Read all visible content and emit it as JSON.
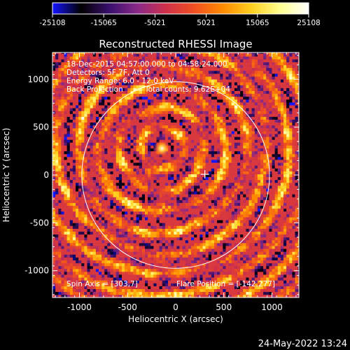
{
  "colorbar": {
    "ticks": [
      "-25108",
      "-15065",
      "-5021",
      "5021",
      "15065",
      "25108"
    ],
    "stops": [
      "#1414ff",
      "#000000",
      "#3a0f6e",
      "#8a2a88",
      "#d0304a",
      "#f05020",
      "#ff8c00",
      "#ffd020",
      "#ffff90",
      "#ffffff"
    ]
  },
  "chart_data": {
    "type": "heatmap",
    "title": "Reconstructed RHESSI Image",
    "xlabel": "Heliocentric X (arcsec)",
    "ylabel": "Heliocentric Y (arcsec)",
    "xlim": [
      -1280,
      1280
    ],
    "ylim": [
      -1280,
      1280
    ],
    "xticks": [
      -1000,
      -500,
      0,
      500,
      1000
    ],
    "yticks": [
      -1000,
      -500,
      0,
      500,
      1000
    ],
    "solar_limb_radius_arcsec": 975,
    "flare_source_arcsec": [
      -142,
      277
    ],
    "spin_axis_marker_arcsec": [
      303,
      7
    ],
    "value_range": [
      -25108,
      25108
    ],
    "annotations": [
      "18-Dec-2015 04:57:00.000 to 04:58:24.000",
      "Detectors: 5F 7F, Att 0",
      "Energy Range: 6.0 - 12.0 keV",
      "Back Projection",
      "Total counts: 9.62E+04",
      "Spin Axis = [303,7]",
      "Flare Position = [-142,277]"
    ]
  },
  "footer": {
    "timestamp": "24-May-2022 13:24"
  }
}
